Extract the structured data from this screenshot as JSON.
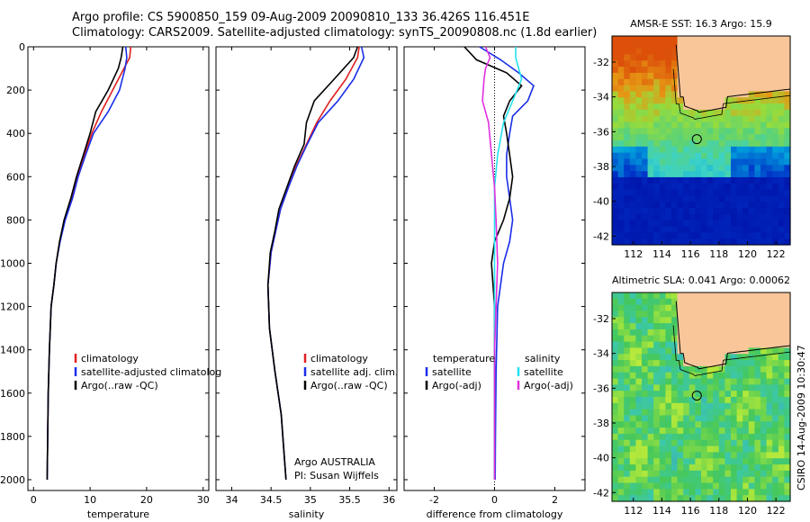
{
  "titles": {
    "line1": "Argo profile: CS 5900850_159 09-Aug-2009 20090810_133 36.426S 116.451E",
    "line2": "Climatology: CARS2009. Satellite-adjusted climatology: synTS_20090808.nc (1.8d earlier)"
  },
  "colors": {
    "climatology": "#e02020",
    "satellite": "#1a2ee8",
    "argo": "#000000",
    "cyan": "#22e3ee",
    "magenta": "#e030e0",
    "land": "#f9c69a",
    "coast": "#000000"
  },
  "chart_data": [
    {
      "id": "temperature",
      "type": "line",
      "xlabel": "temperature",
      "xlim": [
        -1,
        31
      ],
      "xticks": [
        0,
        10,
        20,
        30
      ],
      "ylim": [
        0,
        2050
      ],
      "yticks": [
        0,
        200,
        400,
        600,
        800,
        1000,
        1200,
        1400,
        1600,
        1800,
        2000
      ],
      "inverted_y": true,
      "legend": [
        "climatology",
        "satellite-adjusted climatolog",
        "Argo(..raw -QC)"
      ],
      "series": [
        {
          "name": "climatology",
          "color_key": "climatology",
          "x": [
            17.2,
            17.0,
            16.0,
            14.0,
            12.0,
            10.3,
            9.0,
            7.8,
            6.8,
            5.5,
            4.6,
            4.0,
            3.6,
            3.1,
            2.8,
            2.6,
            2.5,
            2.4
          ],
          "y": [
            0,
            50,
            100,
            200,
            300,
            400,
            500,
            600,
            700,
            800,
            900,
            1000,
            1100,
            1200,
            1400,
            1600,
            1800,
            2000
          ]
        },
        {
          "name": "satellite-adjusted climatolog",
          "color_key": "satellite",
          "x": [
            16.3,
            16.5,
            16.2,
            15.2,
            13.2,
            10.6,
            9.2,
            7.9,
            6.9,
            5.6,
            4.7,
            4.0,
            3.6,
            3.1,
            2.8,
            2.6,
            2.5,
            2.4
          ],
          "y": [
            0,
            50,
            100,
            200,
            300,
            400,
            500,
            600,
            700,
            800,
            900,
            1000,
            1100,
            1200,
            1400,
            1600,
            1800,
            2000
          ]
        },
        {
          "name": "Argo(..raw -QC)",
          "color_key": "argo",
          "x": [
            15.8,
            15.5,
            15.0,
            13.2,
            11.0,
            10.0,
            8.8,
            7.6,
            6.6,
            5.4,
            4.6,
            4.0,
            3.6,
            3.1,
            2.8,
            2.6,
            2.5,
            2.4
          ],
          "y": [
            0,
            50,
            100,
            200,
            300,
            400,
            500,
            600,
            700,
            800,
            900,
            1000,
            1100,
            1200,
            1400,
            1600,
            1800,
            2000
          ]
        }
      ]
    },
    {
      "id": "salinity",
      "type": "line",
      "xlabel": "salinity",
      "xlim": [
        33.8,
        36.1
      ],
      "xticks": [
        34,
        34.5,
        35,
        35.5,
        36
      ],
      "ylim": [
        0,
        2050
      ],
      "inverted_y": true,
      "legend": [
        "climatology",
        "satellite adj. clim.",
        "Argo(..raw -QC)"
      ],
      "annotation": [
        "Argo AUSTRALIA",
        "PI: Susan Wijffels"
      ],
      "series": [
        {
          "name": "climatology",
          "color_key": "climatology",
          "x": [
            35.62,
            35.6,
            35.45,
            35.25,
            35.08,
            34.95,
            34.82,
            34.72,
            34.62,
            34.56,
            34.5,
            34.46,
            34.48,
            34.55,
            34.63,
            34.67,
            34.69
          ],
          "y": [
            0,
            50,
            150,
            250,
            350,
            450,
            550,
            650,
            750,
            850,
            950,
            1100,
            1300,
            1500,
            1700,
            1900,
            2000
          ]
        },
        {
          "name": "satellite adj. clim.",
          "color_key": "satellite",
          "x": [
            35.65,
            35.68,
            35.55,
            35.35,
            35.1,
            34.96,
            34.83,
            34.72,
            34.62,
            34.56,
            34.5,
            34.46,
            34.48,
            34.55,
            34.63,
            34.67,
            34.69
          ],
          "y": [
            0,
            50,
            150,
            250,
            350,
            450,
            550,
            650,
            750,
            850,
            950,
            1100,
            1300,
            1500,
            1700,
            1900,
            2000
          ]
        },
        {
          "name": "Argo(..raw -QC)",
          "color_key": "argo",
          "x": [
            35.6,
            35.55,
            35.3,
            35.05,
            34.95,
            34.92,
            34.8,
            34.7,
            34.6,
            34.55,
            34.49,
            34.46,
            34.48,
            34.55,
            34.63,
            34.67,
            34.69
          ],
          "y": [
            0,
            50,
            150,
            250,
            350,
            450,
            550,
            650,
            750,
            850,
            950,
            1100,
            1300,
            1500,
            1700,
            1900,
            2000
          ]
        }
      ]
    },
    {
      "id": "difference",
      "type": "line",
      "xlabel": "difference from climatology",
      "xlim": [
        -3,
        3
      ],
      "xticks": [
        -2,
        0,
        2
      ],
      "ylim": [
        0,
        2050
      ],
      "inverted_y": true,
      "legend_groups": [
        {
          "header": "temperature",
          "items": [
            "satellite",
            "Argo(-adj)"
          ]
        },
        {
          "header": "salinity",
          "items": [
            "satellite",
            "Argo(-adj)"
          ]
        }
      ],
      "series": [
        {
          "name": "temperature satellite",
          "color_key": "satellite",
          "x": [
            -0.5,
            0.2,
            0.8,
            1.3,
            1.1,
            0.6,
            0.5,
            0.4,
            0.4,
            0.5,
            0.6,
            0.5,
            0.3,
            0.1,
            0.05,
            0.03,
            0.02
          ],
          "y": [
            0,
            60,
            120,
            180,
            250,
            320,
            400,
            500,
            600,
            700,
            800,
            900,
            1000,
            1200,
            1500,
            1800,
            2000
          ]
        },
        {
          "name": "temperature Argo(-adj)",
          "color_key": "argo",
          "x": [
            -1.0,
            -0.6,
            0.4,
            0.9,
            0.5,
            0.3,
            0.4,
            0.5,
            0.6,
            0.5,
            0.3,
            0.0,
            -0.1,
            0.0,
            0.0,
            0.0,
            0.0
          ],
          "y": [
            0,
            60,
            120,
            180,
            250,
            320,
            400,
            500,
            600,
            700,
            800,
            900,
            1000,
            1200,
            1500,
            1800,
            2000
          ]
        },
        {
          "name": "salinity satellite",
          "color_key": "cyan",
          "x": [
            0.7,
            0.7,
            0.8,
            0.9,
            0.6,
            0.3,
            0.1,
            0.0,
            0.0,
            0.0,
            0.0,
            0.0,
            0.0,
            0.0,
            0.0
          ],
          "y": [
            0,
            50,
            100,
            150,
            250,
            350,
            500,
            650,
            800,
            1000,
            1200,
            1400,
            1600,
            1800,
            2000
          ]
        },
        {
          "name": "salinity Argo(-adj)",
          "color_key": "magenta",
          "x": [
            -0.3,
            -0.15,
            -0.3,
            -0.35,
            -0.4,
            -0.2,
            -0.1,
            0.0,
            0.05,
            0.1,
            0.05,
            0.0,
            0.0,
            0.0,
            0.0
          ],
          "y": [
            0,
            50,
            100,
            150,
            250,
            350,
            500,
            650,
            800,
            1000,
            1200,
            1400,
            1600,
            1800,
            2000
          ]
        }
      ]
    },
    {
      "id": "sst_map",
      "type": "heatmap",
      "title": "AMSR-E SST: 16.3 Argo: 15.9",
      "xlim": [
        110.5,
        123.0
      ],
      "ylim": [
        -42.5,
        -30.5
      ],
      "xticks": [
        112,
        114,
        116,
        118,
        120,
        122
      ],
      "yticks": [
        -32,
        -34,
        -36,
        -38,
        -40,
        -42
      ],
      "marker": {
        "lon": 116.451,
        "lat": -36.426
      }
    },
    {
      "id": "sla_map",
      "type": "heatmap",
      "title": "Altimetric SLA: 0.041 Argo: 0.00062",
      "xlim": [
        110.5,
        123.0
      ],
      "ylim": [
        -42.5,
        -30.5
      ],
      "xticks": [
        112,
        114,
        116,
        118,
        120,
        122
      ],
      "yticks": [
        -32,
        -34,
        -36,
        -38,
        -40,
        -42
      ],
      "marker": {
        "lon": 116.451,
        "lat": -36.426
      }
    }
  ],
  "side_label": "CSIRO 14-Aug-2009 10:30:47"
}
